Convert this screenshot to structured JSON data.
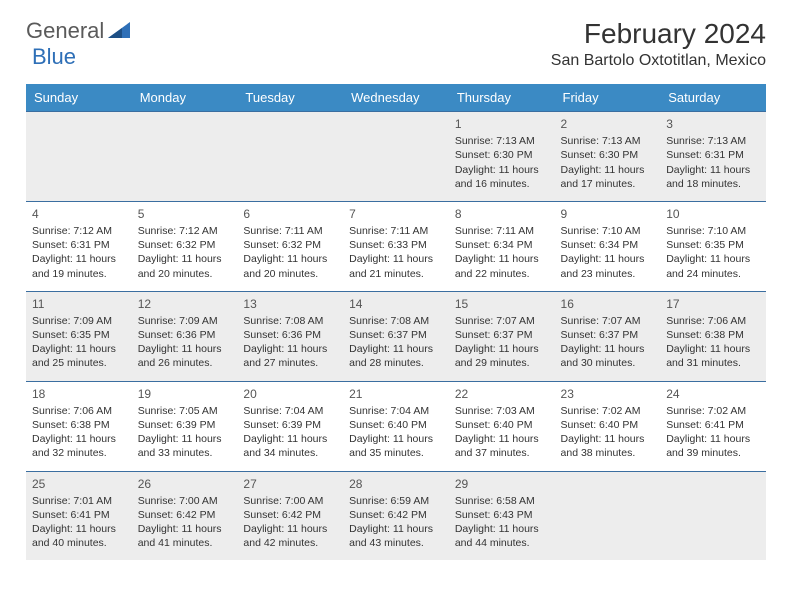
{
  "brand": {
    "name1": "General",
    "name2": "Blue"
  },
  "title": "February 2024",
  "location": "San Bartolo Oxtotitlan, Mexico",
  "colors": {
    "header_bg": "#3b8ac4",
    "header_text": "#ffffff",
    "row_border": "#3b6ea0",
    "alt_row_bg": "#ededed",
    "text": "#333333",
    "brand_blue": "#2e6fb7",
    "brand_grey": "#5a5a5a"
  },
  "weekdays": [
    "Sunday",
    "Monday",
    "Tuesday",
    "Wednesday",
    "Thursday",
    "Friday",
    "Saturday"
  ],
  "weeks": [
    [
      null,
      null,
      null,
      null,
      {
        "n": "1",
        "sunrise": "7:13 AM",
        "sunset": "6:30 PM",
        "day_h": "11",
        "day_m": "16"
      },
      {
        "n": "2",
        "sunrise": "7:13 AM",
        "sunset": "6:30 PM",
        "day_h": "11",
        "day_m": "17"
      },
      {
        "n": "3",
        "sunrise": "7:13 AM",
        "sunset": "6:31 PM",
        "day_h": "11",
        "day_m": "18"
      }
    ],
    [
      {
        "n": "4",
        "sunrise": "7:12 AM",
        "sunset": "6:31 PM",
        "day_h": "11",
        "day_m": "19"
      },
      {
        "n": "5",
        "sunrise": "7:12 AM",
        "sunset": "6:32 PM",
        "day_h": "11",
        "day_m": "20"
      },
      {
        "n": "6",
        "sunrise": "7:11 AM",
        "sunset": "6:32 PM",
        "day_h": "11",
        "day_m": "20"
      },
      {
        "n": "7",
        "sunrise": "7:11 AM",
        "sunset": "6:33 PM",
        "day_h": "11",
        "day_m": "21"
      },
      {
        "n": "8",
        "sunrise": "7:11 AM",
        "sunset": "6:34 PM",
        "day_h": "11",
        "day_m": "22"
      },
      {
        "n": "9",
        "sunrise": "7:10 AM",
        "sunset": "6:34 PM",
        "day_h": "11",
        "day_m": "23"
      },
      {
        "n": "10",
        "sunrise": "7:10 AM",
        "sunset": "6:35 PM",
        "day_h": "11",
        "day_m": "24"
      }
    ],
    [
      {
        "n": "11",
        "sunrise": "7:09 AM",
        "sunset": "6:35 PM",
        "day_h": "11",
        "day_m": "25"
      },
      {
        "n": "12",
        "sunrise": "7:09 AM",
        "sunset": "6:36 PM",
        "day_h": "11",
        "day_m": "26"
      },
      {
        "n": "13",
        "sunrise": "7:08 AM",
        "sunset": "6:36 PM",
        "day_h": "11",
        "day_m": "27"
      },
      {
        "n": "14",
        "sunrise": "7:08 AM",
        "sunset": "6:37 PM",
        "day_h": "11",
        "day_m": "28"
      },
      {
        "n": "15",
        "sunrise": "7:07 AM",
        "sunset": "6:37 PM",
        "day_h": "11",
        "day_m": "29"
      },
      {
        "n": "16",
        "sunrise": "7:07 AM",
        "sunset": "6:37 PM",
        "day_h": "11",
        "day_m": "30"
      },
      {
        "n": "17",
        "sunrise": "7:06 AM",
        "sunset": "6:38 PM",
        "day_h": "11",
        "day_m": "31"
      }
    ],
    [
      {
        "n": "18",
        "sunrise": "7:06 AM",
        "sunset": "6:38 PM",
        "day_h": "11",
        "day_m": "32"
      },
      {
        "n": "19",
        "sunrise": "7:05 AM",
        "sunset": "6:39 PM",
        "day_h": "11",
        "day_m": "33"
      },
      {
        "n": "20",
        "sunrise": "7:04 AM",
        "sunset": "6:39 PM",
        "day_h": "11",
        "day_m": "34"
      },
      {
        "n": "21",
        "sunrise": "7:04 AM",
        "sunset": "6:40 PM",
        "day_h": "11",
        "day_m": "35"
      },
      {
        "n": "22",
        "sunrise": "7:03 AM",
        "sunset": "6:40 PM",
        "day_h": "11",
        "day_m": "37"
      },
      {
        "n": "23",
        "sunrise": "7:02 AM",
        "sunset": "6:40 PM",
        "day_h": "11",
        "day_m": "38"
      },
      {
        "n": "24",
        "sunrise": "7:02 AM",
        "sunset": "6:41 PM",
        "day_h": "11",
        "day_m": "39"
      }
    ],
    [
      {
        "n": "25",
        "sunrise": "7:01 AM",
        "sunset": "6:41 PM",
        "day_h": "11",
        "day_m": "40"
      },
      {
        "n": "26",
        "sunrise": "7:00 AM",
        "sunset": "6:42 PM",
        "day_h": "11",
        "day_m": "41"
      },
      {
        "n": "27",
        "sunrise": "7:00 AM",
        "sunset": "6:42 PM",
        "day_h": "11",
        "day_m": "42"
      },
      {
        "n": "28",
        "sunrise": "6:59 AM",
        "sunset": "6:42 PM",
        "day_h": "11",
        "day_m": "43"
      },
      {
        "n": "29",
        "sunrise": "6:58 AM",
        "sunset": "6:43 PM",
        "day_h": "11",
        "day_m": "44"
      },
      null,
      null
    ]
  ],
  "labels": {
    "sunrise": "Sunrise:",
    "sunset": "Sunset:",
    "daylight": "Daylight:",
    "hours": "hours",
    "and": "and",
    "minutes": "minutes."
  }
}
